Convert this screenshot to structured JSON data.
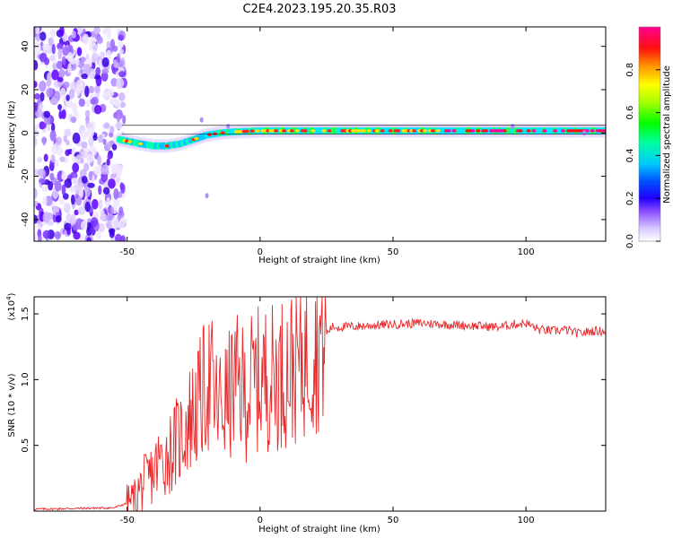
{
  "figure": {
    "title": "C2E4.2023.195.20.35.R03"
  },
  "chart_data": [
    {
      "type": "heatmap",
      "xlabel": "Height of straight line (km)",
      "ylabel": "Frequency (Hz)",
      "xlim": [
        -85,
        130
      ],
      "ylim": [
        -50,
        49
      ],
      "x_ticks": [
        -50,
        0,
        50,
        100
      ],
      "y_ticks": [
        -40,
        -20,
        0,
        20,
        40
      ],
      "grid": false,
      "noise_region": {
        "x_range": [
          -85,
          -51
        ],
        "freq_range": [
          -50,
          49
        ]
      },
      "ridge": {
        "description_points": [
          {
            "x": -53,
            "freq": -3
          },
          {
            "x": -45,
            "freq": -5
          },
          {
            "x": -40,
            "freq": -6
          },
          {
            "x": -35,
            "freq": -6
          },
          {
            "x": -30,
            "freq": -5
          },
          {
            "x": -25,
            "freq": -3
          },
          {
            "x": -20,
            "freq": -1
          },
          {
            "x": -15,
            "freq": 0
          },
          {
            "x": -10,
            "freq": 0.5
          },
          {
            "x": 0,
            "freq": 1
          },
          {
            "x": 10,
            "freq": 1
          },
          {
            "x": 30,
            "freq": 1
          },
          {
            "x": 60,
            "freq": 1
          },
          {
            "x": 90,
            "freq": 1
          },
          {
            "x": 130,
            "freq": 1
          }
        ]
      },
      "colorbar": {
        "label": "Normalized spectral amplitude",
        "range": [
          0.0,
          1.0
        ],
        "ticks": [
          0.0,
          0.2,
          0.4,
          0.6,
          0.8
        ],
        "colormap": [
          "#ffffff",
          "#b08cff",
          "#5a00ff",
          "#0000ff",
          "#00b0ff",
          "#00ffc0",
          "#00ff00",
          "#a0ff00",
          "#ffff00",
          "#ff8000",
          "#ff0000",
          "#ff00a0"
        ]
      }
    },
    {
      "type": "line",
      "xlabel": "Height of straight line (km)",
      "ylabel": "SNR (10 * v/v)",
      "y_multiplier": "(x10",
      "y_multiplier_exp": "4",
      "y_multiplier_close": ")",
      "xlim": [
        -85,
        130
      ],
      "ylim": [
        0,
        16300
      ],
      "x_ticks": [
        -50,
        0,
        50,
        100
      ],
      "y_ticks": [
        {
          "value": 5000,
          "label": "0.5"
        },
        {
          "value": 10000,
          "label": "1.0"
        },
        {
          "value": 15000,
          "label": "1.5"
        }
      ],
      "series": [
        {
          "color": "#e8282a",
          "x": [
            -85,
            -70,
            -55,
            -50,
            -47,
            -45,
            -42,
            -40,
            -38,
            -35,
            -33,
            -30,
            -28,
            -25,
            -22,
            -20,
            -18,
            -17,
            -15,
            -12,
            -10,
            -8,
            -5,
            -3,
            0,
            3,
            5,
            8,
            10,
            12,
            15,
            18,
            20,
            22,
            25,
            27,
            30,
            40,
            50,
            60,
            70,
            80,
            90,
            95,
            100,
            105,
            110,
            115,
            118,
            120,
            125,
            130
          ],
          "y": [
            150,
            200,
            250,
            600,
            1000,
            1800,
            2500,
            3000,
            3700,
            4200,
            4800,
            5600,
            6500,
            7500,
            8500,
            10000,
            9500,
            8000,
            8000,
            8500,
            9500,
            9500,
            8800,
            9800,
            10000,
            10300,
            10200,
            10500,
            10800,
            11000,
            11500,
            12000,
            12500,
            13000,
            13500,
            14000,
            14000,
            14100,
            14200,
            14300,
            14200,
            14100,
            14000,
            14200,
            14300,
            13800,
            13700,
            13800,
            13600,
            13500,
            13700,
            13700
          ]
        }
      ]
    }
  ]
}
